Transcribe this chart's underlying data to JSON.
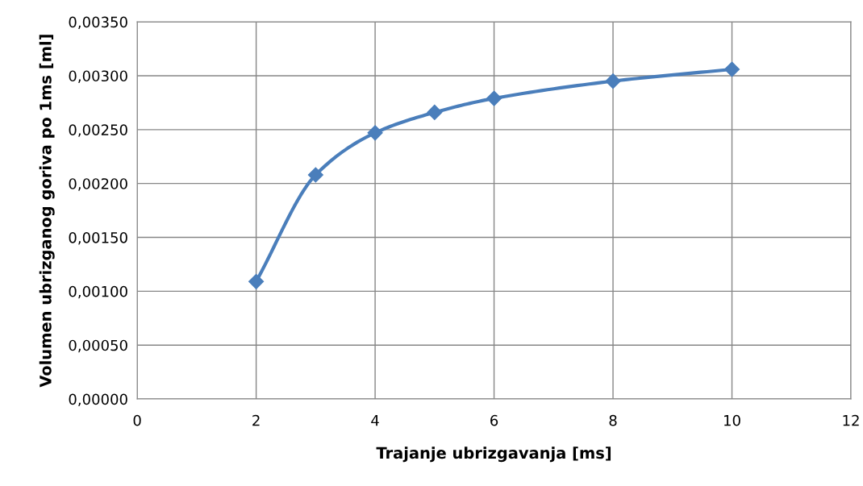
{
  "chart_data": {
    "type": "line",
    "xlabel": "Trajanje ubrizgavanja [ms]",
    "ylabel": "Volumen ubrizganog goriva po 1ms [ml]",
    "x": [
      2,
      3,
      4,
      5,
      6,
      8,
      10
    ],
    "series": [
      {
        "color": "#4a7ebb",
        "values": [
          0.00109,
          0.00208,
          0.00247,
          0.00266,
          0.00279,
          0.00295,
          0.00306
        ]
      }
    ],
    "xlim": [
      0,
      12
    ],
    "xticks": [
      0,
      2,
      4,
      6,
      8,
      10,
      12
    ],
    "ylim": [
      0,
      0.0035
    ],
    "yticks": [
      {
        "value": 0,
        "label": "0,00000"
      },
      {
        "value": 0.0005,
        "label": "0,00050"
      },
      {
        "value": 0.001,
        "label": "0,00100"
      },
      {
        "value": 0.0015,
        "label": "0,00150"
      },
      {
        "value": 0.002,
        "label": "0,00200"
      },
      {
        "value": 0.0025,
        "label": "0,00250"
      },
      {
        "value": 0.003,
        "label": "0,00300"
      },
      {
        "value": 0.0035,
        "label": "0,00350"
      }
    ],
    "grid": true,
    "marker": "diamond",
    "line_style": "solid"
  }
}
